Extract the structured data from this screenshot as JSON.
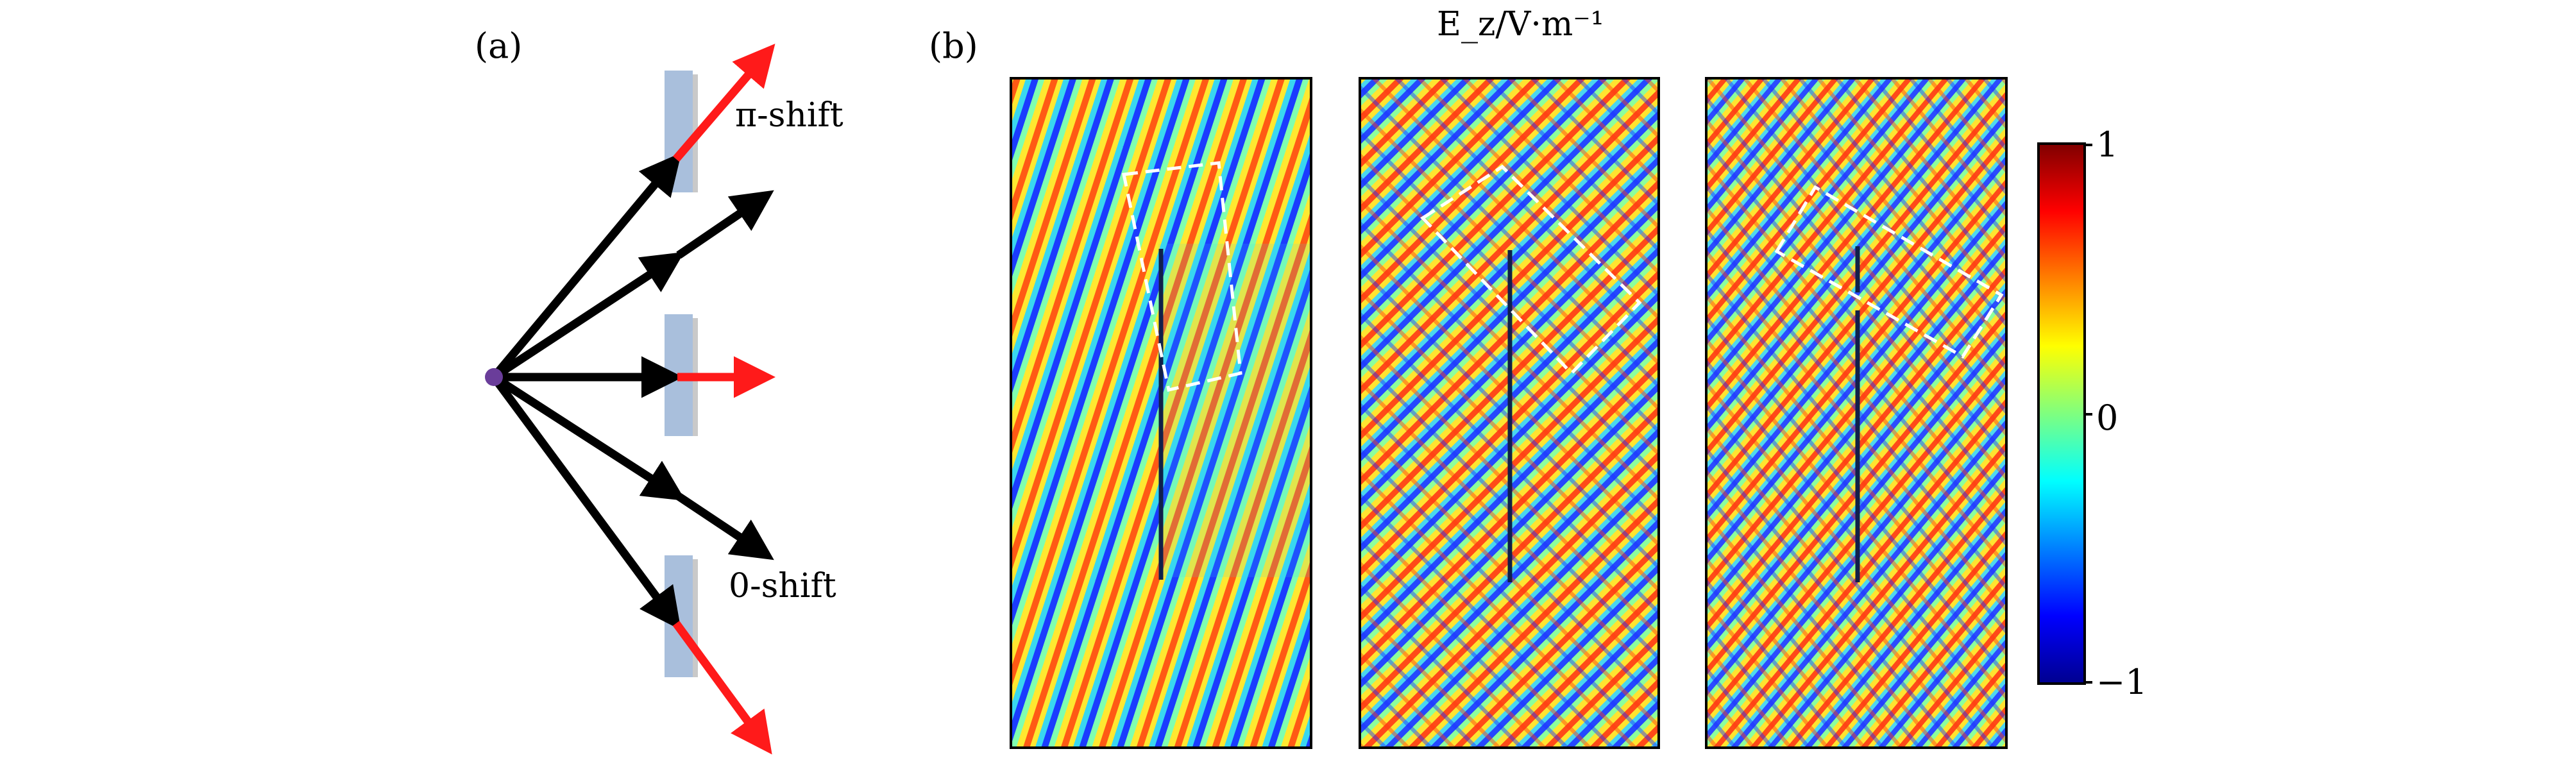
{
  "panel_a": {
    "label": "(a)",
    "top_label": "π-shift",
    "bottom_label": "0-shift",
    "colors": {
      "source": "#6a3d9a",
      "incident_arrow": "#000000",
      "shifted_arrow": "#ff1a1a",
      "scatterer": "#a9bfdc"
    }
  },
  "panel_b": {
    "label": "(b)",
    "title": "E_z/V·m⁻¹",
    "colorbar": {
      "max_label": "1",
      "zero_label": "0",
      "min_label": "−1",
      "range": [
        -1,
        1
      ],
      "colormap": "jet"
    }
  }
}
